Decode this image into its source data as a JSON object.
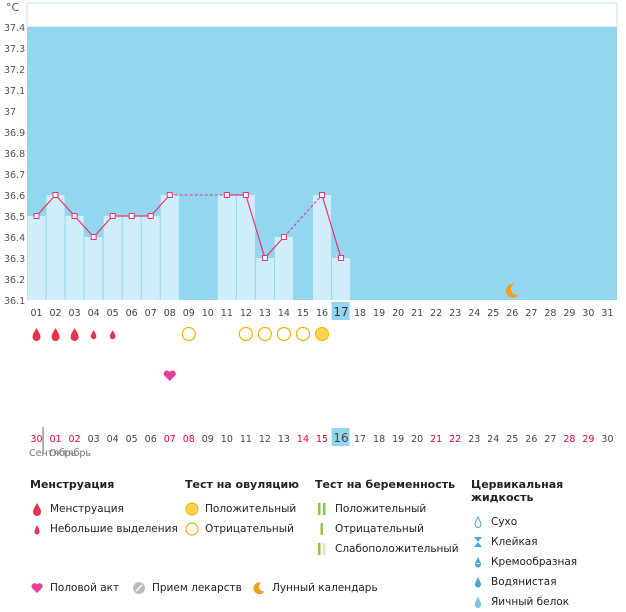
{
  "unit_label": "°C",
  "chart_data": {
    "type": "bar",
    "ylim": [
      36.1,
      37.4
    ],
    "y_ticks": [
      "36.1",
      "36.2",
      "36.3",
      "36.4",
      "36.5",
      "36.6",
      "36.7",
      "36.8",
      "36.9",
      "37",
      "37.1",
      "37.2",
      "37.3",
      "37.4"
    ],
    "days": [
      "01",
      "02",
      "03",
      "04",
      "05",
      "06",
      "07",
      "08",
      "09",
      "10",
      "11",
      "12",
      "13",
      "14",
      "15",
      "16",
      "17",
      "18",
      "19",
      "20",
      "21",
      "22",
      "23",
      "24",
      "25",
      "26",
      "27",
      "28",
      "29",
      "30",
      "31"
    ],
    "temperatures": [
      36.5,
      36.6,
      36.5,
      36.4,
      36.5,
      36.5,
      36.5,
      36.6,
      null,
      null,
      36.6,
      36.6,
      36.3,
      36.4,
      null,
      36.6,
      36.3,
      null,
      null,
      null,
      null,
      null,
      null,
      null,
      null,
      null,
      null,
      null,
      null,
      null,
      null
    ],
    "dashed_segments": [
      [
        8,
        11
      ],
      [
        14,
        16
      ]
    ],
    "highlight_day": "17",
    "colors": {
      "background": "#93d6f0",
      "bar": "#cfedfb",
      "line": "#e8336d",
      "highlight": "#93d6f0",
      "red_day": "#e0003c"
    }
  },
  "markers": {
    "menstruation": [
      1,
      2,
      3
    ],
    "spotting": [
      4,
      5
    ],
    "ovulation_negative": [
      9,
      12,
      13,
      14,
      15
    ],
    "ovulation_positive": [
      16
    ],
    "sex": [
      8
    ],
    "moon": [
      26
    ]
  },
  "cycle_days": {
    "labels": [
      "30",
      "01",
      "02",
      "03",
      "04",
      "05",
      "06",
      "07",
      "08",
      "09",
      "10",
      "11",
      "12",
      "13",
      "14",
      "15",
      "16",
      "17",
      "18",
      "19",
      "20",
      "21",
      "22",
      "23",
      "24",
      "25",
      "26",
      "27",
      "28",
      "29",
      "30"
    ],
    "red": [
      true,
      true,
      true,
      false,
      false,
      false,
      false,
      true,
      true,
      false,
      false,
      false,
      false,
      false,
      true,
      true,
      false,
      false,
      false,
      false,
      false,
      true,
      true,
      false,
      false,
      false,
      false,
      false,
      true,
      true,
      false
    ],
    "highlight_index": 16
  },
  "months": {
    "previous": "Сентябрь",
    "current": "Октябрь"
  },
  "legend": {
    "menstruation": {
      "title": "Менструация",
      "items": [
        "Менструация",
        "Небольшие выделения"
      ]
    },
    "ovulation_test": {
      "title": "Тест на овуляцию",
      "items": [
        "Положительный",
        "Отрицательный"
      ]
    },
    "pregnancy_test": {
      "title": "Тест на беременность",
      "items": [
        "Положительный",
        "Отрицательный",
        "Слабоположительный"
      ]
    },
    "cervical_fluid": {
      "title": "Цервикальная жидкость",
      "items": [
        "Сухо",
        "Клейкая",
        "Кремообразная",
        "Водянистая",
        "Яичный белок"
      ]
    },
    "bottom": [
      "Половой акт",
      "Прием лекарств",
      "Лунный календарь"
    ]
  }
}
